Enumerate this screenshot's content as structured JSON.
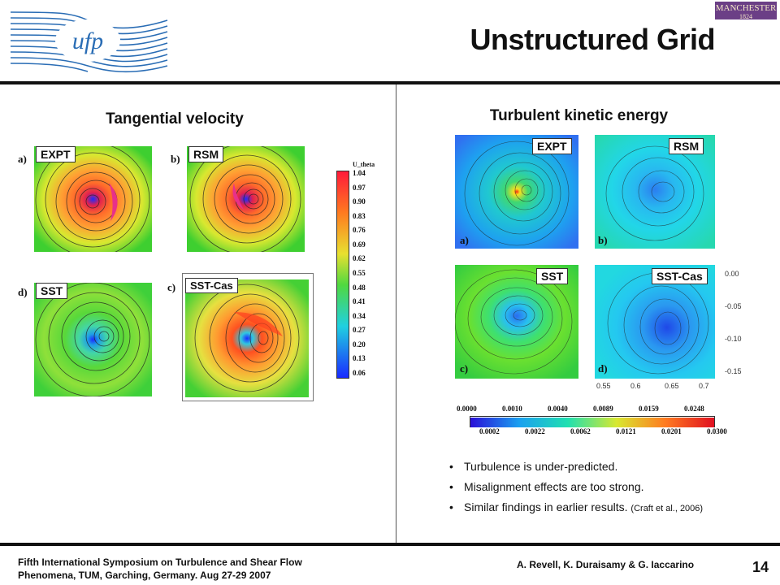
{
  "header": {
    "title": "Unstructured Grid",
    "ufp_logo_text": "ufp",
    "manchester_logo": "MANCHESTER",
    "manchester_year": "1824"
  },
  "left_panel": {
    "title": "Tangential velocity",
    "plots": [
      {
        "letter": "a)",
        "tag": "EXPT"
      },
      {
        "letter": "b)",
        "tag": "RSM"
      },
      {
        "letter": "d)",
        "tag": "SST"
      },
      {
        "letter": "c)",
        "tag": "SST-Cas"
      }
    ],
    "colorbar": {
      "label": "U_theta",
      "ticks": [
        "1.04",
        "0.97",
        "0.90",
        "0.83",
        "0.76",
        "0.69",
        "0.62",
        "0.55",
        "0.48",
        "0.41",
        "0.34",
        "0.27",
        "0.20",
        "0.13",
        "0.06"
      ]
    }
  },
  "right_panel": {
    "title": "Turbulent kinetic energy",
    "plots": [
      {
        "letter": "a)",
        "tag": "EXPT"
      },
      {
        "letter": "b)",
        "tag": "RSM"
      },
      {
        "letter": "c)",
        "tag": "SST"
      },
      {
        "letter": "d)",
        "tag": "SST-Cas"
      }
    ],
    "y_axis_ticks": [
      "0.00",
      "-0.05",
      "-0.10",
      "-0.15"
    ],
    "x_axis_ticks": [
      "0.55",
      "0.6",
      "0.65",
      "0.7"
    ],
    "colorbar": {
      "top_ticks": [
        "0.0000",
        "0.0010",
        "0.0040",
        "0.0089",
        "0.0159",
        "0.0248"
      ],
      "bottom_ticks": [
        "0.0002",
        "0.0022",
        "0.0062",
        "0.0121",
        "0.0201",
        "0.0300"
      ]
    }
  },
  "bullets": [
    {
      "text": "Turbulence is under-predicted.",
      "cite": ""
    },
    {
      "text": "Misalignment effects are too strong.",
      "cite": ""
    },
    {
      "text": "Similar findings in earlier results.",
      "cite": "(Craft et al., 2006)"
    }
  ],
  "footer": {
    "line1": "Fifth International Symposium on Turbulence and Shear Flow",
    "line2": "Phenomena, TUM, Garching, Germany. Aug 27-29 2007",
    "authors": "A. Revell, K. Duraisamy & G. Iaccarino",
    "page": "14"
  },
  "colors": {
    "rule": "#111111",
    "logo_blue": "#2a6db5",
    "manchester_purple": "#6b3f86"
  }
}
